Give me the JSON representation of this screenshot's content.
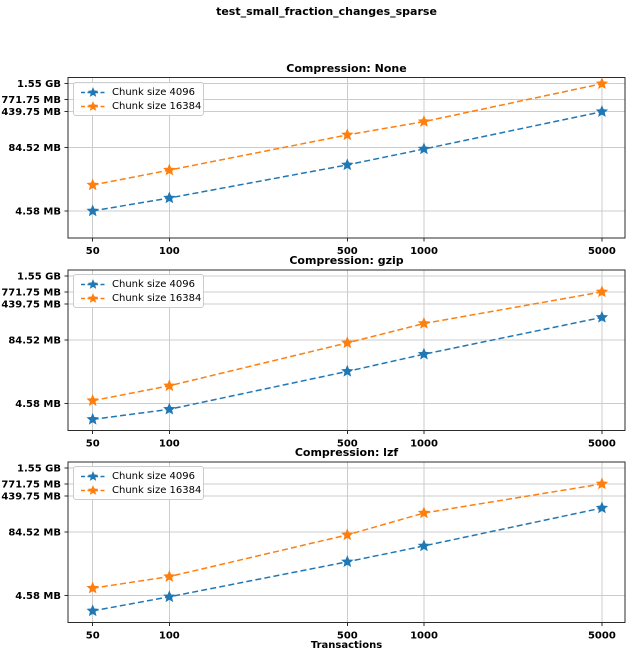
{
  "figure": {
    "suptitle": "test_small_fraction_changes_sparse",
    "xlabel": "Transactions"
  },
  "legend": {
    "items": [
      {
        "label": "Chunk size 4096",
        "color": "#1f77b4",
        "marker": "star",
        "linestyle": "dashed"
      },
      {
        "label": "Chunk size 16384",
        "color": "#ff7f0e",
        "marker": "star",
        "linestyle": "dashed"
      }
    ]
  },
  "axes": {
    "x_scale": "log",
    "y_scale": "log",
    "grid": true,
    "xlim": [
      40,
      6160
    ],
    "ylim_mb": [
      1.32,
      2114
    ],
    "x_ticks": [
      50,
      100,
      500,
      1000,
      5000
    ],
    "x_tick_labels": [
      "50",
      "100",
      "500",
      "1000",
      "5000"
    ],
    "y_tick_values_mb": [
      1587.2,
      771.75,
      439.75,
      84.52,
      4.58
    ],
    "y_tick_labels": [
      "1.55 GB",
      "771.75 MB",
      "439.75 MB",
      "84.52 MB",
      "4.58 MB"
    ]
  },
  "chart_data": [
    {
      "type": "line",
      "title": "Compression: None",
      "x": [
        50,
        100,
        500,
        1000,
        5000
      ],
      "unit": "MB",
      "series": [
        {
          "name": "Chunk size 4096",
          "color": "#1f77b4",
          "values_mb": [
            4.58,
            8.3,
            38.0,
            79.0,
            439.75
          ]
        },
        {
          "name": "Chunk size 16384",
          "color": "#ff7f0e",
          "values_mb": [
            15.1,
            30.0,
            151.0,
            278.0,
            1587.2
          ]
        }
      ]
    },
    {
      "type": "line",
      "title": "Compression: gzip",
      "x": [
        50,
        100,
        500,
        1000,
        5000
      ],
      "unit": "MB",
      "series": [
        {
          "name": "Chunk size 4096",
          "color": "#1f77b4",
          "values_mb": [
            2.2,
            3.5,
            20.0,
            44.0,
            239.0
          ]
        },
        {
          "name": "Chunk size 16384",
          "color": "#ff7f0e",
          "values_mb": [
            5.2,
            10.3,
            74.0,
            181.0,
            771.75
          ]
        }
      ]
    },
    {
      "type": "line",
      "title": "Compression: lzf",
      "x": [
        50,
        100,
        500,
        1000,
        5000
      ],
      "unit": "MB",
      "series": [
        {
          "name": "Chunk size 4096",
          "color": "#1f77b4",
          "values_mb": [
            2.25,
            4.3,
            21.5,
            44.6,
            255.0
          ]
        },
        {
          "name": "Chunk size 16384",
          "color": "#ff7f0e",
          "values_mb": [
            6.4,
            10.9,
            74.0,
            203.0,
            771.75
          ]
        }
      ]
    }
  ],
  "style": {
    "grid_color": "#cccccc",
    "spine_color": "#2b2b2b",
    "tick_label_color": "#000000"
  }
}
